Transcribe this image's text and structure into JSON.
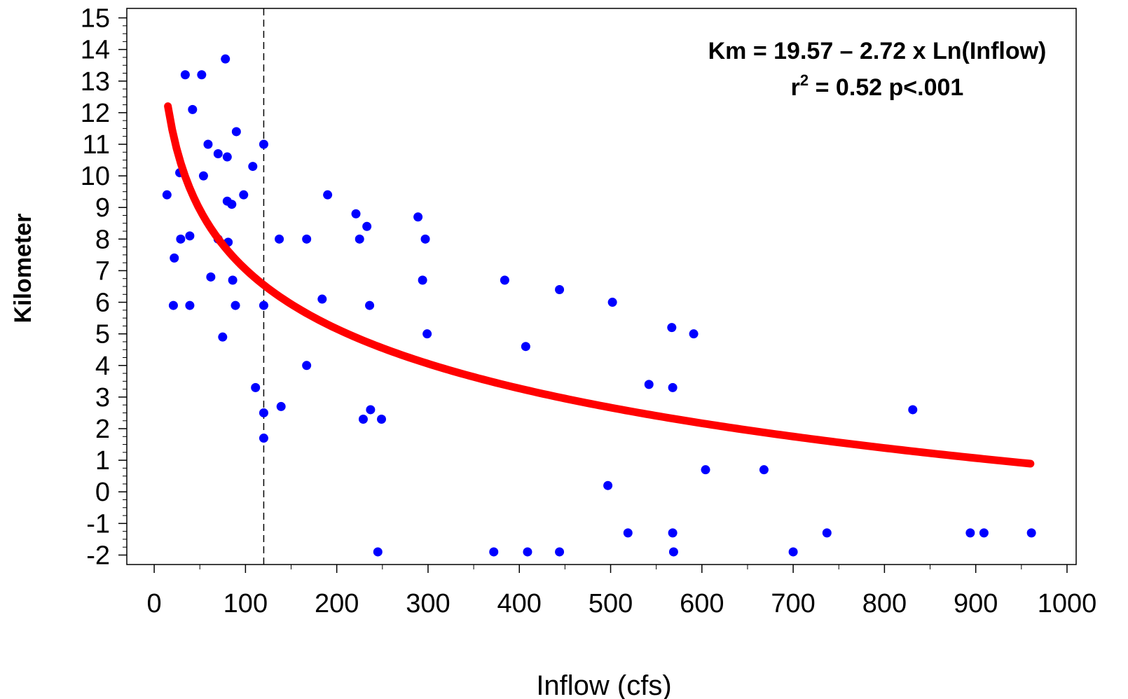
{
  "chart_data": {
    "type": "scatter",
    "xlabel": "Inflow (cfs)",
    "ylabel": "Kilometer",
    "xlim": [
      -30,
      1010
    ],
    "ylim": [
      -2.3,
      15.3
    ],
    "xticks": [
      0,
      100,
      200,
      300,
      400,
      500,
      600,
      700,
      800,
      900,
      1000
    ],
    "yticks": [
      -2,
      -1,
      0,
      1,
      2,
      3,
      4,
      5,
      6,
      7,
      8,
      9,
      10,
      11,
      12,
      13,
      14,
      15
    ],
    "xtick_labels": [
      "0",
      "100",
      "200",
      "300",
      "400",
      "500",
      "600",
      "700",
      "800",
      "900",
      "1000"
    ],
    "ytick_labels": [
      "-2",
      "-1",
      "0",
      "1",
      "2",
      "3",
      "4",
      "5",
      "6",
      "7",
      "8",
      "9",
      "10",
      "11",
      "12",
      "13",
      "14",
      "15"
    ],
    "grid": false,
    "reference_line_x": 120,
    "equation_line1": "Km = 19.57 – 2.72 x Ln(Inflow)",
    "equation_line2_prefix": "r",
    "equation_line2_sup": "2",
    "equation_line2_rest": " = 0.52  p<.001",
    "fit": {
      "intercept": 19.57,
      "slope": -2.72,
      "x_range": [
        15,
        960
      ],
      "color": "#ff0000"
    },
    "point_color": "#0000ff",
    "points": [
      {
        "x": 14,
        "y": 9.4
      },
      {
        "x": 21,
        "y": 5.9
      },
      {
        "x": 22,
        "y": 7.4
      },
      {
        "x": 28,
        "y": 10.1
      },
      {
        "x": 29,
        "y": 8.0
      },
      {
        "x": 34,
        "y": 13.2
      },
      {
        "x": 39,
        "y": 8.1
      },
      {
        "x": 39,
        "y": 5.9
      },
      {
        "x": 42,
        "y": 12.1
      },
      {
        "x": 52,
        "y": 13.2
      },
      {
        "x": 54,
        "y": 10.0
      },
      {
        "x": 59,
        "y": 11.0
      },
      {
        "x": 62,
        "y": 6.8
      },
      {
        "x": 70,
        "y": 10.7
      },
      {
        "x": 70,
        "y": 8.0
      },
      {
        "x": 75,
        "y": 4.9
      },
      {
        "x": 78,
        "y": 13.7
      },
      {
        "x": 80,
        "y": 10.6
      },
      {
        "x": 80,
        "y": 9.2
      },
      {
        "x": 81,
        "y": 7.9
      },
      {
        "x": 85,
        "y": 9.1
      },
      {
        "x": 86,
        "y": 6.7
      },
      {
        "x": 89,
        "y": 5.9
      },
      {
        "x": 90,
        "y": 11.4
      },
      {
        "x": 98,
        "y": 9.4
      },
      {
        "x": 108,
        "y": 10.3
      },
      {
        "x": 111,
        "y": 3.3
      },
      {
        "x": 120,
        "y": 11.0
      },
      {
        "x": 120,
        "y": 5.9
      },
      {
        "x": 120,
        "y": 2.5
      },
      {
        "x": 120,
        "y": 1.7
      },
      {
        "x": 137,
        "y": 8.0
      },
      {
        "x": 139,
        "y": 2.7
      },
      {
        "x": 167,
        "y": 8.0
      },
      {
        "x": 167,
        "y": 4.0
      },
      {
        "x": 184,
        "y": 6.1
      },
      {
        "x": 190,
        "y": 9.4
      },
      {
        "x": 221,
        "y": 8.8
      },
      {
        "x": 225,
        "y": 8.0
      },
      {
        "x": 229,
        "y": 2.3
      },
      {
        "x": 233,
        "y": 8.4
      },
      {
        "x": 236,
        "y": 5.9
      },
      {
        "x": 237,
        "y": 2.6
      },
      {
        "x": 245,
        "y": -1.9
      },
      {
        "x": 249,
        "y": 2.3
      },
      {
        "x": 289,
        "y": 8.7
      },
      {
        "x": 294,
        "y": 6.7
      },
      {
        "x": 297,
        "y": 8.0
      },
      {
        "x": 299,
        "y": 5.0
      },
      {
        "x": 372,
        "y": -1.9
      },
      {
        "x": 384,
        "y": 6.7
      },
      {
        "x": 407,
        "y": 4.6
      },
      {
        "x": 409,
        "y": -1.9
      },
      {
        "x": 444,
        "y": 6.4
      },
      {
        "x": 444,
        "y": -1.9
      },
      {
        "x": 497,
        "y": 0.2
      },
      {
        "x": 502,
        "y": 6.0
      },
      {
        "x": 519,
        "y": -1.3
      },
      {
        "x": 542,
        "y": 3.4
      },
      {
        "x": 567,
        "y": 5.2
      },
      {
        "x": 568,
        "y": 3.3
      },
      {
        "x": 568,
        "y": -1.3
      },
      {
        "x": 569,
        "y": -1.9
      },
      {
        "x": 591,
        "y": 5.0
      },
      {
        "x": 604,
        "y": 0.7
      },
      {
        "x": 668,
        "y": 0.7
      },
      {
        "x": 700,
        "y": -1.9
      },
      {
        "x": 737,
        "y": -1.3
      },
      {
        "x": 831,
        "y": 2.6
      },
      {
        "x": 894,
        "y": -1.3
      },
      {
        "x": 909,
        "y": -1.3
      },
      {
        "x": 961,
        "y": -1.3
      }
    ]
  }
}
